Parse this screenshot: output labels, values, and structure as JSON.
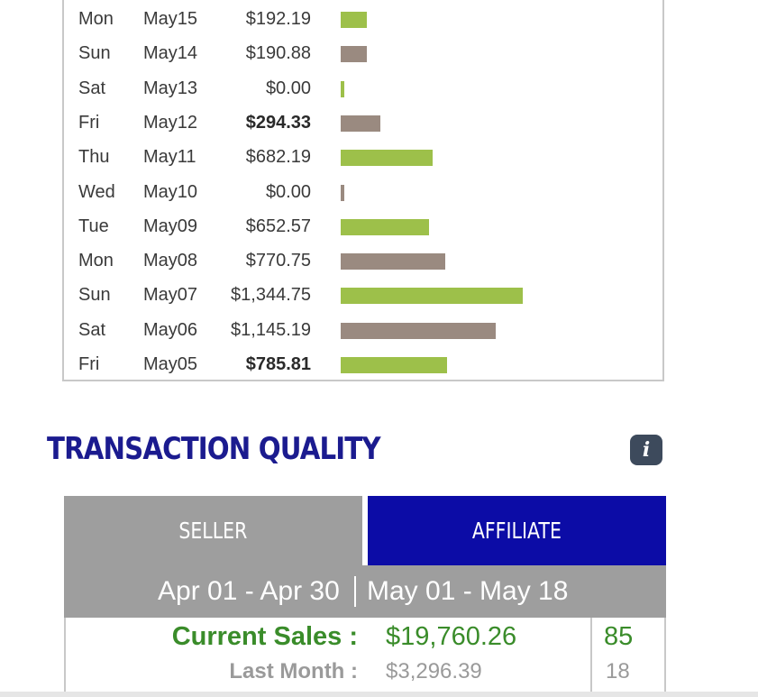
{
  "daily": {
    "rows": [
      {
        "dow": "Mon",
        "date": "May15",
        "amount": "$192.19",
        "value": 192.19,
        "bold": false,
        "color": "green"
      },
      {
        "dow": "Sun",
        "date": "May14",
        "amount": "$190.88",
        "value": 190.88,
        "bold": false,
        "color": "taupe"
      },
      {
        "dow": "Sat",
        "date": "May13",
        "amount": "$0.00",
        "value": 0,
        "bold": false,
        "color": "green"
      },
      {
        "dow": "Fri",
        "date": "May12",
        "amount": "$294.33",
        "value": 294.33,
        "bold": true,
        "color": "taupe"
      },
      {
        "dow": "Thu",
        "date": "May11",
        "amount": "$682.19",
        "value": 682.19,
        "bold": false,
        "color": "green"
      },
      {
        "dow": "Wed",
        "date": "May10",
        "amount": "$0.00",
        "value": 0,
        "bold": false,
        "color": "taupe"
      },
      {
        "dow": "Tue",
        "date": "May09",
        "amount": "$652.57",
        "value": 652.57,
        "bold": false,
        "color": "green"
      },
      {
        "dow": "Mon",
        "date": "May08",
        "amount": "$770.75",
        "value": 770.75,
        "bold": false,
        "color": "taupe"
      },
      {
        "dow": "Sun",
        "date": "May07",
        "amount": "$1,344.75",
        "value": 1344.75,
        "bold": false,
        "color": "green"
      },
      {
        "dow": "Sat",
        "date": "May06",
        "amount": "$1,145.19",
        "value": 1145.19,
        "bold": false,
        "color": "taupe"
      },
      {
        "dow": "Fri",
        "date": "May05",
        "amount": "$785.81",
        "value": 785.81,
        "bold": true,
        "color": "green"
      }
    ],
    "bar_colors": {
      "green": "#9dc04a",
      "taupe": "#9a8a80"
    }
  },
  "transaction_quality": {
    "title": "TRANSACTION QUALITY",
    "info_icon": "info-icon",
    "info_glyph": "i",
    "tabs": {
      "seller": "SELLER",
      "affiliate": "AFFILIATE"
    },
    "range_previous": "Apr 01 - Apr 30",
    "range_current": "May 01 - May 18",
    "current_sales_label": "Current Sales :",
    "current_sales_value": "$19,760.26",
    "current_sales_count": "85",
    "last_month_label": "Last Month :",
    "last_month_value": "$3,296.39",
    "last_month_count": "18",
    "colors": {
      "title": "#1b1b8f",
      "active_tab": "#0c0ca6",
      "inactive_tab": "#9e9e9e",
      "sales_green": "#3a8c2a"
    }
  }
}
